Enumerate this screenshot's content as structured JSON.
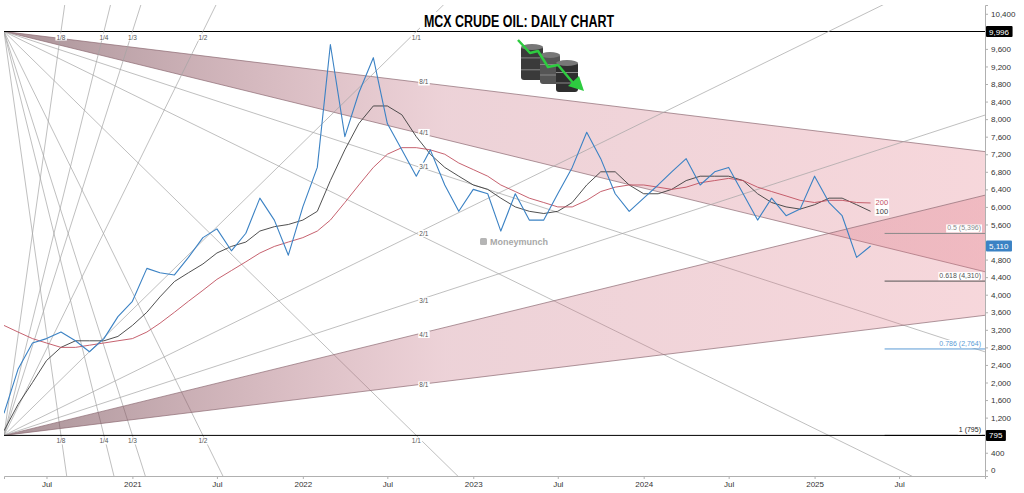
{
  "chart_data": {
    "type": "line",
    "title": "MCX CRUDE OIL: DAILY CHART",
    "grid": false,
    "x": [
      "2020-04",
      "2020-05",
      "2020-06",
      "2020-07",
      "2020-08",
      "2020-09",
      "2020-10",
      "2020-11",
      "2020-12",
      "2021-01",
      "2021-02",
      "2021-03",
      "2021-04",
      "2021-05",
      "2021-06",
      "2021-07",
      "2021-08",
      "2021-09",
      "2021-10",
      "2021-11",
      "2021-12",
      "2022-01",
      "2022-02",
      "2022-03",
      "2022-04",
      "2022-05",
      "2022-06",
      "2022-07",
      "2022-08",
      "2022-09",
      "2022-10",
      "2022-11",
      "2022-12",
      "2023-01",
      "2023-02",
      "2023-03",
      "2023-04",
      "2023-05",
      "2023-06",
      "2023-07",
      "2023-08",
      "2023-09",
      "2023-10",
      "2023-11",
      "2023-12",
      "2024-01",
      "2024-02",
      "2024-03",
      "2024-04",
      "2024-05",
      "2024-06",
      "2024-07",
      "2024-08",
      "2024-09",
      "2024-10",
      "2024-11",
      "2024-12",
      "2025-01",
      "2025-02",
      "2025-03",
      "2025-04",
      "2025-05"
    ],
    "xlim": [
      "2020-04",
      "2026-01"
    ],
    "xticks": [
      {
        "value": "2020-07",
        "label": "Jul"
      },
      {
        "value": "2021-01",
        "label": "2021"
      },
      {
        "value": "2021-07",
        "label": "Jul"
      },
      {
        "value": "2022-01",
        "label": "2022"
      },
      {
        "value": "2022-07",
        "label": "Jul"
      },
      {
        "value": "2023-01",
        "label": "2023"
      },
      {
        "value": "2023-07",
        "label": "Jul"
      },
      {
        "value": "2024-01",
        "label": "2024"
      },
      {
        "value": "2024-07",
        "label": "Jul"
      },
      {
        "value": "2025-01",
        "label": "2025"
      },
      {
        "value": "2025-07",
        "label": "Jul"
      }
    ],
    "ylim": [
      -130,
      10600
    ],
    "yticks": [
      0,
      400,
      {
        "value": 1200,
        "label": "1,200"
      },
      {
        "value": 1600,
        "label": "1,600"
      },
      {
        "value": 2000,
        "label": "2,000"
      },
      {
        "value": 2400,
        "label": "2,400"
      },
      {
        "value": 2800,
        "label": "2,800"
      },
      {
        "value": 3200,
        "label": "3,200"
      },
      {
        "value": 3600,
        "label": "3,600"
      },
      {
        "value": 4000,
        "label": "4,000"
      },
      {
        "value": 4400,
        "label": "4,400"
      },
      {
        "value": 4800,
        "label": "4,800"
      },
      {
        "value": 5600,
        "label": "5,600"
      },
      {
        "value": 6000,
        "label": "6,000"
      },
      {
        "value": 6400,
        "label": "6,400"
      },
      {
        "value": 6800,
        "label": "6,800"
      },
      {
        "value": 7200,
        "label": "7,200"
      },
      {
        "value": 7600,
        "label": "7,600"
      },
      {
        "value": 8000,
        "label": "8,000"
      },
      {
        "value": 8400,
        "label": "8,400"
      },
      {
        "value": 8800,
        "label": "8,800"
      },
      {
        "value": 9200,
        "label": "9,200"
      },
      {
        "value": 9600,
        "label": "9,600"
      },
      {
        "value": 10400,
        "label": "10,400"
      }
    ],
    "series": [
      {
        "color": "#3b82c4",
        "values": [
          1300,
          2300,
          2900,
          3000,
          3150,
          2950,
          2700,
          3000,
          3500,
          3850,
          4600,
          4500,
          4450,
          4850,
          5300,
          5500,
          5000,
          5400,
          6200,
          5700,
          4900,
          6000,
          6900,
          9700,
          7600,
          8600,
          9400,
          7900,
          7300,
          6700,
          7300,
          6500,
          5900,
          6400,
          6300,
          5450,
          6300,
          5700,
          5700,
          6300,
          6900,
          7700,
          7100,
          6300,
          5900,
          6200,
          6500,
          6800,
          7100,
          6500,
          6800,
          6900,
          6300,
          5700,
          6200,
          5800,
          5950,
          6700,
          6100,
          5800,
          4850,
          5110
        ]
      },
      {
        "name": "100",
        "color": "#3c3c3c",
        "values": [
          900,
          1500,
          2000,
          2500,
          2800,
          2950,
          2950,
          2950,
          3050,
          3300,
          3600,
          3950,
          4300,
          4500,
          4700,
          4950,
          5100,
          5200,
          5450,
          5550,
          5600,
          5700,
          5900,
          6600,
          7300,
          7900,
          8300,
          8300,
          8100,
          7600,
          7200,
          6900,
          6700,
          6500,
          6400,
          6200,
          6000,
          5900,
          5850,
          5900,
          6100,
          6500,
          6800,
          6800,
          6500,
          6300,
          6300,
          6400,
          6600,
          6700,
          6700,
          6700,
          6600,
          6300,
          6100,
          6000,
          5950,
          6050,
          6200,
          6200,
          6050,
          5900
        ]
      },
      {
        "name": "200",
        "color": "#c0505f",
        "values": [
          3300,
          3150,
          3000,
          2900,
          2800,
          2800,
          2850,
          2900,
          2950,
          3000,
          3150,
          3350,
          3600,
          3850,
          4100,
          4350,
          4550,
          4750,
          4950,
          5100,
          5200,
          5300,
          5450,
          5700,
          6100,
          6500,
          6900,
          7200,
          7350,
          7350,
          7300,
          7200,
          7000,
          6850,
          6700,
          6500,
          6350,
          6200,
          6100,
          6000,
          6000,
          6150,
          6350,
          6450,
          6500,
          6500,
          6450,
          6400,
          6450,
          6550,
          6600,
          6650,
          6600,
          6450,
          6350,
          6250,
          6150,
          6100,
          6150,
          6150,
          6100,
          6090
        ]
      }
    ],
    "gann_fans": [
      {
        "origin": {
          "x": "2020-04",
          "y": 9996
        },
        "lines": [
          {
            "x": "2022-09",
            "y": 8846,
            "label": "8/1"
          },
          {
            "x": "2022-09",
            "y": 7696,
            "label": "4/1"
          },
          {
            "x": "2022-09",
            "y": 6929,
            "label": "3/1"
          },
          {
            "x": "2022-09",
            "y": 5396,
            "label": "2/1"
          },
          {
            "x": "2022-09",
            "y": 795,
            "label": "1/1"
          },
          {
            "x": "2021-06",
            "y": 795,
            "label": "1/2"
          },
          {
            "x": "2021-01",
            "y": 795,
            "label": "1/3"
          },
          {
            "x": "2020-11",
            "y": 795,
            "label": "1/4"
          },
          {
            "x": "2020-08",
            "y": 795,
            "label": "1/8"
          }
        ]
      },
      {
        "origin": {
          "x": "2020-04",
          "y": 795
        },
        "lines": [
          {
            "x": "2022-09",
            "y": 1945,
            "label": "8/1"
          },
          {
            "x": "2022-09",
            "y": 3095,
            "label": "4/1"
          },
          {
            "x": "2022-09",
            "y": 3862,
            "label": "3/1"
          },
          {
            "x": "2022-09",
            "y": 5396,
            "label": null
          },
          {
            "x": "2022-09",
            "y": 9996,
            "label": "1/1"
          },
          {
            "x": "2021-06",
            "y": 9996,
            "label": "1/2"
          },
          {
            "x": "2021-01",
            "y": 9996,
            "label": "1/3"
          },
          {
            "x": "2020-11",
            "y": 9996,
            "label": "1/4"
          },
          {
            "x": "2020-08",
            "y": 9996,
            "label": "1/8"
          }
        ]
      }
    ],
    "fib_levels": [
      {
        "value": 5396,
        "label": "0.5 (5,396)",
        "color": "#8a8a8a"
      },
      {
        "value": 4310,
        "label": "0.618 (4,310)",
        "color": "#555555"
      },
      {
        "value": 2764,
        "label": "0.786 (2,764)",
        "color": "#5b9bd5"
      },
      {
        "value": 795,
        "label": "1 (795)",
        "color": "#000000"
      }
    ],
    "axis_markers": [
      {
        "value": 9996,
        "label": "9,996",
        "color": "#000000"
      },
      {
        "value": 5110,
        "label": "5,110",
        "color": "#3b82c4"
      },
      {
        "value": 795,
        "label": "795",
        "color": "#000000"
      }
    ],
    "annotations": [
      "Moneymunch"
    ]
  }
}
